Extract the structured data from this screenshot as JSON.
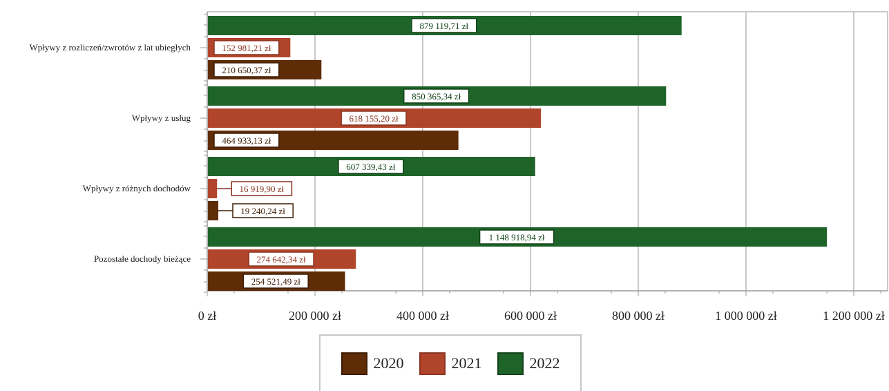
{
  "chart_data": {
    "type": "bar",
    "orientation": "horizontal",
    "categories": [
      "Wpływy z rozliczeń/zwrotów z lat ubiegłych",
      "Wpływy z usług",
      "Wpływy z różnych dochodów",
      "Pozostałe dochody bieżące"
    ],
    "series": [
      {
        "name": "2020",
        "color": "#5e2c07",
        "values": [
          210650.37,
          464933.13,
          19240.24,
          254521.49
        ],
        "labels": [
          "210 650,37 zł",
          "464 933,13 zł",
          "19 240,24 zł",
          "254 521,49 zł"
        ]
      },
      {
        "name": "2021",
        "color": "#b0452b",
        "values": [
          152981.21,
          618155.2,
          16919.9,
          274642.34
        ],
        "labels": [
          "152 981,21 zł",
          "618 155,20 zł",
          "16 919,90 zł",
          "274 642,34 zł"
        ]
      },
      {
        "name": "2022",
        "color": "#1e6429",
        "values": [
          879119.71,
          850365.34,
          607339.43,
          1148918.94
        ],
        "labels": [
          "879 119,71 zł",
          "850 365,34 zł",
          "607 339,43 zł",
          "1 148 918,94 zł"
        ]
      }
    ],
    "x_ticks": [
      0,
      200000,
      400000,
      600000,
      800000,
      1000000,
      1200000
    ],
    "x_tick_labels": [
      "0 zł",
      "200 000 zł",
      "400 000 zł",
      "600 000 zł",
      "800 000 zł",
      "1 000 000 zł",
      "1 200 000 zł"
    ],
    "xlim": [
      0,
      1265000
    ],
    "grid": true,
    "legend": [
      "2020",
      "2021",
      "2022"
    ],
    "legend_position": "bottom"
  }
}
